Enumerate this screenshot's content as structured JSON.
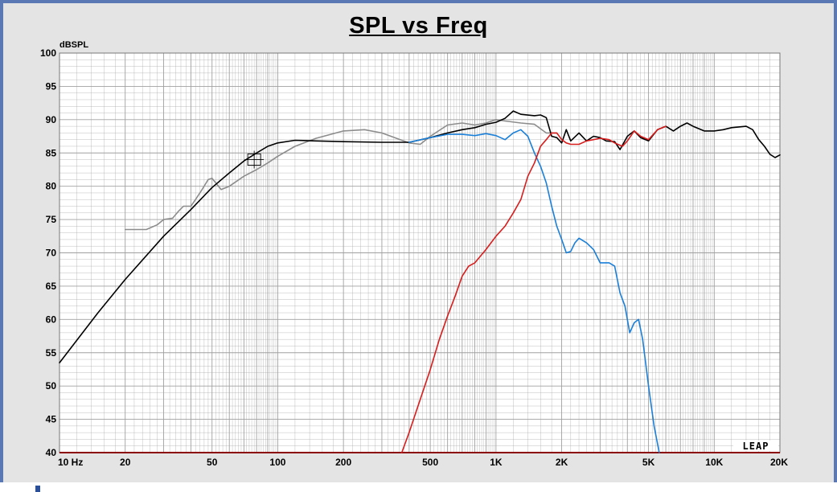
{
  "chart_data": {
    "type": "line",
    "title": "SPL vs Freq",
    "ylabel": "dBSPL",
    "xlabel": "",
    "x_scale": "log",
    "xlim": [
      10,
      20000
    ],
    "ylim": [
      40,
      100
    ],
    "grid": true,
    "y_ticks": [
      "100",
      "95",
      "90",
      "85",
      "80",
      "75",
      "70",
      "65",
      "60",
      "55",
      "50",
      "45",
      "40"
    ],
    "x_ticks": [
      {
        "value": 10,
        "label": "10 Hz"
      },
      {
        "value": 20,
        "label": "20"
      },
      {
        "value": 50,
        "label": "50"
      },
      {
        "value": 100,
        "label": "100"
      },
      {
        "value": 200,
        "label": "200"
      },
      {
        "value": 500,
        "label": "500"
      },
      {
        "value": 1000,
        "label": "1K"
      },
      {
        "value": 2000,
        "label": "2K"
      },
      {
        "value": 5000,
        "label": "5K"
      },
      {
        "value": 10000,
        "label": "10K"
      },
      {
        "value": 20000,
        "label": "20K"
      }
    ],
    "watermark": "LEAP",
    "colors": {
      "background": "#ffffff",
      "frame": "#5a78b4",
      "grid": "#a0a0a0",
      "axis": "#8b0000"
    },
    "series": [
      {
        "color": "#8c8c8c",
        "points": [
          [
            20,
            73.5
          ],
          [
            25,
            73.5
          ],
          [
            28,
            74.2
          ],
          [
            30,
            75
          ],
          [
            33,
            75.2
          ],
          [
            35,
            76.2
          ],
          [
            37,
            77
          ],
          [
            40,
            77
          ],
          [
            42,
            78
          ],
          [
            45,
            79.5
          ],
          [
            48,
            81
          ],
          [
            50,
            81.2
          ],
          [
            55,
            79.5
          ],
          [
            60,
            80
          ],
          [
            70,
            81.5
          ],
          [
            80,
            82.5
          ],
          [
            90,
            83.5
          ],
          [
            100,
            84.5
          ],
          [
            120,
            86
          ],
          [
            150,
            87.2
          ],
          [
            200,
            88.3
          ],
          [
            250,
            88.5
          ],
          [
            300,
            88
          ],
          [
            400,
            86.5
          ],
          [
            450,
            86.3
          ],
          [
            500,
            87.5
          ],
          [
            600,
            89.2
          ],
          [
            700,
            89.5
          ],
          [
            800,
            89.2
          ],
          [
            900,
            89.5
          ],
          [
            1000,
            90
          ],
          [
            1100,
            89.8
          ],
          [
            1300,
            89.5
          ],
          [
            1500,
            89.3
          ],
          [
            1700,
            88
          ],
          [
            1900,
            88
          ]
        ]
      },
      {
        "color": "#000000",
        "points": [
          [
            10,
            53.5
          ],
          [
            15,
            61
          ],
          [
            20,
            66
          ],
          [
            30,
            72.5
          ],
          [
            40,
            76.5
          ],
          [
            50,
            79.8
          ],
          [
            60,
            82
          ],
          [
            70,
            83.8
          ],
          [
            80,
            85
          ],
          [
            90,
            86
          ],
          [
            100,
            86.5
          ],
          [
            120,
            86.9
          ],
          [
            150,
            86.8
          ],
          [
            200,
            86.7
          ],
          [
            300,
            86.6
          ],
          [
            400,
            86.6
          ],
          [
            500,
            87.3
          ],
          [
            600,
            88
          ],
          [
            700,
            88.5
          ],
          [
            800,
            88.8
          ],
          [
            900,
            89.3
          ],
          [
            1000,
            89.6
          ],
          [
            1100,
            90.2
          ],
          [
            1200,
            91.3
          ],
          [
            1300,
            90.8
          ],
          [
            1500,
            90.6
          ],
          [
            1600,
            90.7
          ],
          [
            1700,
            90.3
          ],
          [
            1800,
            87.5
          ],
          [
            1900,
            87.3
          ],
          [
            2000,
            86.5
          ],
          [
            2100,
            88.5
          ],
          [
            2200,
            86.8
          ],
          [
            2400,
            88
          ],
          [
            2600,
            86.8
          ],
          [
            2800,
            87.5
          ],
          [
            3000,
            87.3
          ],
          [
            3200,
            86.8
          ],
          [
            3500,
            86.7
          ],
          [
            3700,
            85.5
          ],
          [
            4000,
            87.5
          ],
          [
            4300,
            88.3
          ],
          [
            4600,
            87.3
          ],
          [
            5000,
            86.8
          ],
          [
            5500,
            88.5
          ],
          [
            6000,
            89
          ],
          [
            6500,
            88.3
          ],
          [
            7000,
            89
          ],
          [
            7500,
            89.5
          ],
          [
            8000,
            89
          ],
          [
            9000,
            88.3
          ],
          [
            10000,
            88.3
          ],
          [
            11000,
            88.5
          ],
          [
            12000,
            88.8
          ],
          [
            14000,
            89
          ],
          [
            15000,
            88.5
          ],
          [
            16000,
            87
          ],
          [
            17000,
            86
          ],
          [
            18000,
            84.8
          ],
          [
            19000,
            84.3
          ],
          [
            20000,
            84.7
          ]
        ]
      },
      {
        "color": "#1a7fd8",
        "points": [
          [
            400,
            86.6
          ],
          [
            500,
            87.3
          ],
          [
            600,
            87.8
          ],
          [
            700,
            87.8
          ],
          [
            800,
            87.6
          ],
          [
            900,
            87.9
          ],
          [
            1000,
            87.6
          ],
          [
            1100,
            87
          ],
          [
            1200,
            88
          ],
          [
            1300,
            88.5
          ],
          [
            1400,
            87.5
          ],
          [
            1500,
            85
          ],
          [
            1600,
            83
          ],
          [
            1700,
            80.5
          ],
          [
            1800,
            77
          ],
          [
            1900,
            74
          ],
          [
            2000,
            72
          ],
          [
            2100,
            70
          ],
          [
            2200,
            70.2
          ],
          [
            2300,
            71.5
          ],
          [
            2400,
            72.2
          ],
          [
            2600,
            71.5
          ],
          [
            2800,
            70.5
          ],
          [
            3000,
            68.5
          ],
          [
            3300,
            68.5
          ],
          [
            3500,
            68
          ],
          [
            3700,
            64
          ],
          [
            3900,
            62
          ],
          [
            4100,
            58
          ],
          [
            4300,
            59.5
          ],
          [
            4500,
            60
          ],
          [
            4700,
            57
          ],
          [
            5000,
            50
          ],
          [
            5300,
            44
          ],
          [
            5600,
            40
          ]
        ]
      },
      {
        "color": "#d81c1c",
        "points": [
          [
            370,
            40
          ],
          [
            400,
            43
          ],
          [
            450,
            48
          ],
          [
            500,
            52.5
          ],
          [
            550,
            57
          ],
          [
            600,
            60.5
          ],
          [
            650,
            63.5
          ],
          [
            700,
            66.5
          ],
          [
            750,
            68
          ],
          [
            800,
            68.5
          ],
          [
            900,
            70.5
          ],
          [
            1000,
            72.5
          ],
          [
            1100,
            74
          ],
          [
            1200,
            76
          ],
          [
            1300,
            78
          ],
          [
            1400,
            81.5
          ],
          [
            1500,
            83.5
          ],
          [
            1600,
            86
          ],
          [
            1700,
            87
          ],
          [
            1800,
            88
          ],
          [
            1900,
            88
          ],
          [
            2000,
            87
          ],
          [
            2100,
            86.5
          ],
          [
            2200,
            86.3
          ],
          [
            2400,
            86.3
          ],
          [
            2600,
            86.8
          ],
          [
            2800,
            87
          ],
          [
            3000,
            87.2
          ],
          [
            3300,
            87
          ],
          [
            3500,
            86.5
          ],
          [
            3800,
            86
          ],
          [
            4000,
            86.8
          ],
          [
            4300,
            88.3
          ],
          [
            4600,
            87.5
          ],
          [
            5000,
            87
          ],
          [
            5500,
            88.5
          ],
          [
            6000,
            89
          ]
        ]
      }
    ]
  }
}
